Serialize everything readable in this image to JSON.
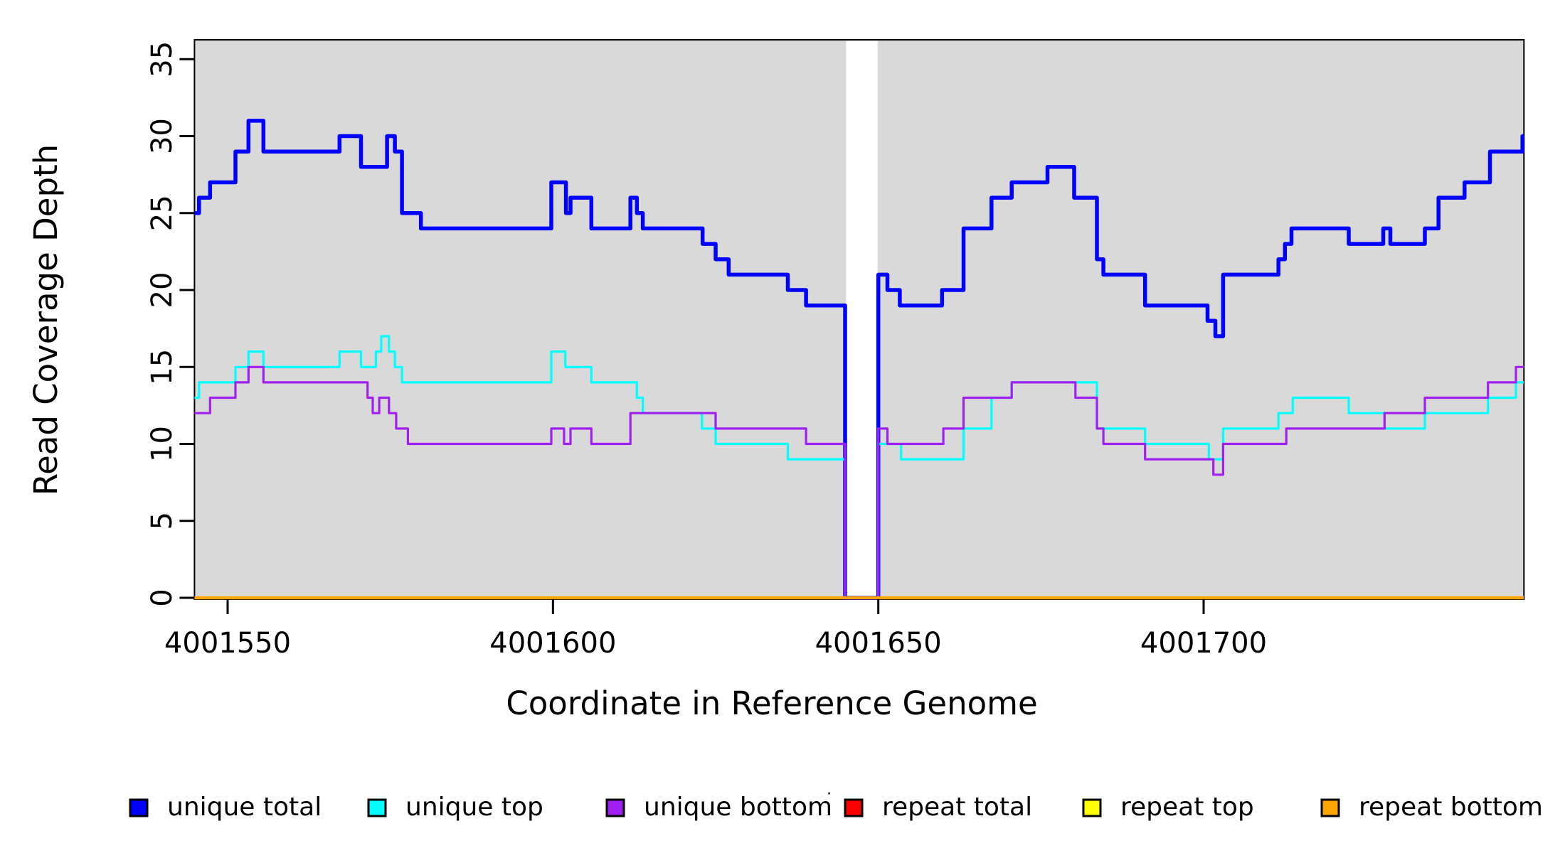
{
  "chart_data": {
    "type": "line",
    "subtype": "step-coverage-plot",
    "title": "",
    "xlabel": "Coordinate in Reference Genome",
    "ylabel": "Read Coverage Depth",
    "xlim": [
      4001544.9,
      4001749.2
    ],
    "ylim": [
      0,
      36.3
    ],
    "x_ticks": [
      4001550,
      4001600,
      4001650,
      4001700
    ],
    "y_ticks": [
      0,
      5,
      10,
      15,
      20,
      25,
      30,
      35
    ],
    "grid": "off",
    "panel_bg": "#D9D9D9",
    "panel_border_color": "#000000",
    "gap_region": {
      "start": 4001645.05,
      "end": 4001649.9,
      "color": "#FFFFFF"
    },
    "legend_position": "bottom",
    "legend": [
      {
        "label": "unique total",
        "color": "#0000FF"
      },
      {
        "label": "unique top",
        "color": "#00FFFF"
      },
      {
        "label": "unique bottom",
        "color": "#A020F0"
      },
      {
        "label": "repeat total",
        "color": "#FF0000"
      },
      {
        "label": "repeat top",
        "color": "#FFFF00"
      },
      {
        "label": "repeat bottom",
        "color": "#FFA500"
      }
    ],
    "stray_mark": "·",
    "series": [
      {
        "name": "unique total",
        "color": "#0000FF",
        "width": 5.5,
        "points": [
          [
            4001544.9,
            25
          ],
          [
            4001545.6,
            26
          ],
          [
            4001547.3,
            27
          ],
          [
            4001551.2,
            29
          ],
          [
            4001553.2,
            31
          ],
          [
            4001555.5,
            29
          ],
          [
            4001567.2,
            30
          ],
          [
            4001570.5,
            28
          ],
          [
            4001574.5,
            30
          ],
          [
            4001575.7,
            29
          ],
          [
            4001576.8,
            25
          ],
          [
            4001579.7,
            24
          ],
          [
            4001599.75,
            27
          ],
          [
            4001602.0,
            25
          ],
          [
            4001602.7,
            26
          ],
          [
            4001605.9,
            24
          ],
          [
            4001611.9,
            26
          ],
          [
            4001612.9,
            25
          ],
          [
            4001613.8,
            24
          ],
          [
            4001623.0,
            23
          ],
          [
            4001625.0,
            22
          ],
          [
            4001627.0,
            21
          ],
          [
            4001636.1,
            20
          ],
          [
            4001638.9,
            19
          ],
          [
            4001644.9,
            0
          ],
          [
            4001650.0,
            21
          ],
          [
            4001651.4,
            20
          ],
          [
            4001653.3,
            19
          ],
          [
            4001659.8,
            20
          ],
          [
            4001663.1,
            24
          ],
          [
            4001667.4,
            26
          ],
          [
            4001670.5,
            27
          ],
          [
            4001676.0,
            28
          ],
          [
            4001680.1,
            26
          ],
          [
            4001683.6,
            22
          ],
          [
            4001684.6,
            21
          ],
          [
            4001691.0,
            19
          ],
          [
            4001700.6,
            18
          ],
          [
            4001701.8,
            17
          ],
          [
            4001703.0,
            21
          ],
          [
            4001711.5,
            22
          ],
          [
            4001712.5,
            23
          ],
          [
            4001713.5,
            24
          ],
          [
            4001722.3,
            23
          ],
          [
            4001727.6,
            24
          ],
          [
            4001728.7,
            23
          ],
          [
            4001734.0,
            24
          ],
          [
            4001736.1,
            26
          ],
          [
            4001740.1,
            27
          ],
          [
            4001744.0,
            29
          ],
          [
            4001749.0,
            30
          ]
        ]
      },
      {
        "name": "unique top",
        "color": "#00FFFF",
        "width": 3.2,
        "points": [
          [
            4001544.9,
            13
          ],
          [
            4001545.6,
            14
          ],
          [
            4001551.2,
            15
          ],
          [
            4001553.2,
            16
          ],
          [
            4001555.5,
            15
          ],
          [
            4001567.2,
            16
          ],
          [
            4001570.5,
            15
          ],
          [
            4001572.8,
            16
          ],
          [
            4001573.6,
            17
          ],
          [
            4001574.8,
            16
          ],
          [
            4001575.7,
            15
          ],
          [
            4001576.8,
            14
          ],
          [
            4001599.75,
            16
          ],
          [
            4001601.9,
            15
          ],
          [
            4001605.9,
            14
          ],
          [
            4001612.9,
            13
          ],
          [
            4001613.8,
            12
          ],
          [
            4001622.9,
            11
          ],
          [
            4001625.0,
            10
          ],
          [
            4001636.1,
            9
          ],
          [
            4001644.9,
            0
          ],
          [
            4001650.0,
            10
          ],
          [
            4001653.5,
            9
          ],
          [
            4001663.1,
            11
          ],
          [
            4001667.4,
            13
          ],
          [
            4001670.5,
            14
          ],
          [
            4001683.6,
            11
          ],
          [
            4001691.0,
            10
          ],
          [
            4001700.8,
            9
          ],
          [
            4001703.0,
            11
          ],
          [
            4001711.5,
            12
          ],
          [
            4001713.7,
            13
          ],
          [
            4001722.3,
            12
          ],
          [
            4001727.8,
            11
          ],
          [
            4001734.0,
            12
          ],
          [
            4001743.7,
            13
          ],
          [
            4001748.0,
            14
          ]
        ]
      },
      {
        "name": "unique bottom",
        "color": "#A020F0",
        "width": 3.2,
        "points": [
          [
            4001544.9,
            12
          ],
          [
            4001547.3,
            13
          ],
          [
            4001551.2,
            14
          ],
          [
            4001553.2,
            15
          ],
          [
            4001555.5,
            14
          ],
          [
            4001571.5,
            13
          ],
          [
            4001572.3,
            12
          ],
          [
            4001573.3,
            13
          ],
          [
            4001574.8,
            12
          ],
          [
            4001575.9,
            11
          ],
          [
            4001577.7,
            10
          ],
          [
            4001599.75,
            11
          ],
          [
            4001601.7,
            10
          ],
          [
            4001602.7,
            11
          ],
          [
            4001605.9,
            10
          ],
          [
            4001611.9,
            12
          ],
          [
            4001625.0,
            11
          ],
          [
            4001638.9,
            10
          ],
          [
            4001644.9,
            0
          ],
          [
            4001650.0,
            11
          ],
          [
            4001651.4,
            10
          ],
          [
            4001660.0,
            11
          ],
          [
            4001663.1,
            13
          ],
          [
            4001670.5,
            14
          ],
          [
            4001680.3,
            13
          ],
          [
            4001683.6,
            11
          ],
          [
            4001684.6,
            10
          ],
          [
            4001691.0,
            9
          ],
          [
            4001701.5,
            8
          ],
          [
            4001703.0,
            10
          ],
          [
            4001712.7,
            11
          ],
          [
            4001727.8,
            12
          ],
          [
            4001734.0,
            13
          ],
          [
            4001743.7,
            14
          ],
          [
            4001748.0,
            15
          ]
        ]
      },
      {
        "name": "repeat total",
        "color": "#FF0000",
        "width": 3,
        "points": [
          [
            4001544.9,
            0
          ]
        ]
      },
      {
        "name": "repeat top",
        "color": "#FFFF00",
        "width": 3,
        "points": [
          [
            4001544.9,
            0
          ]
        ]
      },
      {
        "name": "repeat bottom",
        "color": "#FFA500",
        "width": 4.5,
        "points": [
          [
            4001544.9,
            0
          ]
        ]
      }
    ]
  }
}
